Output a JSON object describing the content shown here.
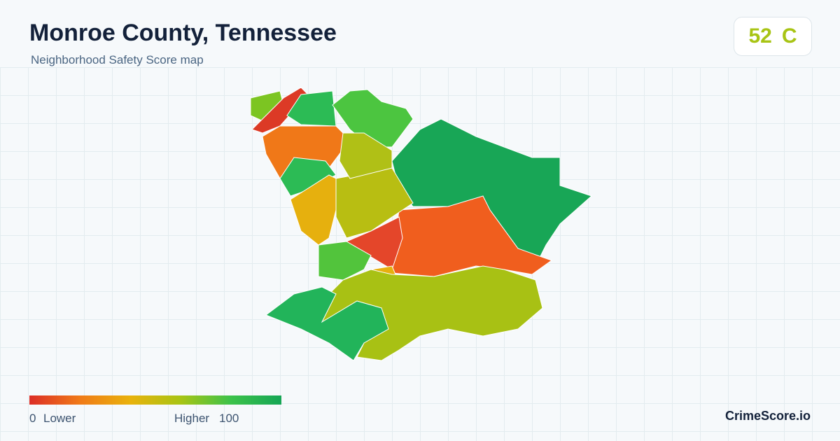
{
  "header": {
    "title": "Monroe County, Tennessee",
    "subtitle": "Neighborhood Safety Score map"
  },
  "score": {
    "value": "52",
    "grade": "C"
  },
  "legend": {
    "min": "0",
    "min_label": "Lower",
    "max_label": "Higher",
    "max": "100"
  },
  "brand": "CrimeScore.io"
}
